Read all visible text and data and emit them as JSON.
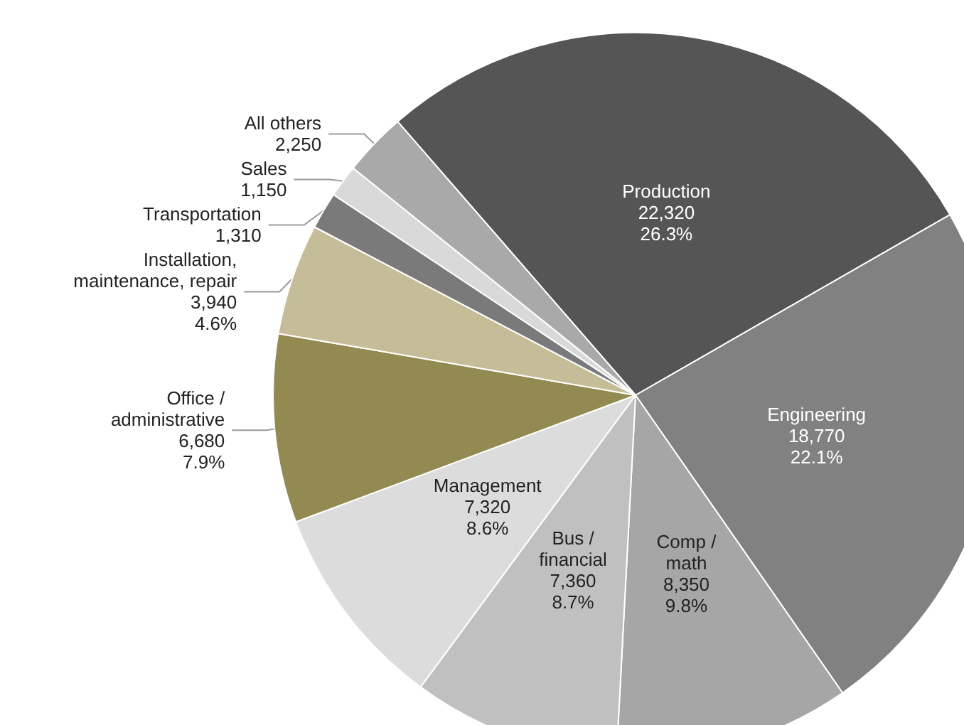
{
  "chart_data": {
    "type": "pie",
    "categories": [
      "Production",
      "Engineering",
      "Comp /\nmath",
      "Bus /\nfinancial",
      "Management",
      "Office /\nadministrative",
      "Installation,\nmaintenance, repair",
      "Transportation",
      "Sales",
      "All others"
    ],
    "values": [
      22320,
      18770,
      8350,
      7360,
      7320,
      6680,
      3940,
      1310,
      1150,
      2250
    ],
    "value_labels": [
      "22,320\n26.3%",
      "18,770\n22.1%",
      "8,350\n9.8%",
      "7,360\n8.7%",
      "7,320\n8.6%",
      "6,680\n7.9%",
      "3,940\n4.6%",
      "1,310",
      "1,150",
      "2,250"
    ],
    "colors": [
      "#555555",
      "#818181",
      "#a6a6a6",
      "#c0c0c0",
      "#dcdcdc",
      "#938a52",
      "#c5bd97",
      "#7a7a7a",
      "#d9d9d9",
      "#a9a9a9"
    ],
    "legend": false
  }
}
